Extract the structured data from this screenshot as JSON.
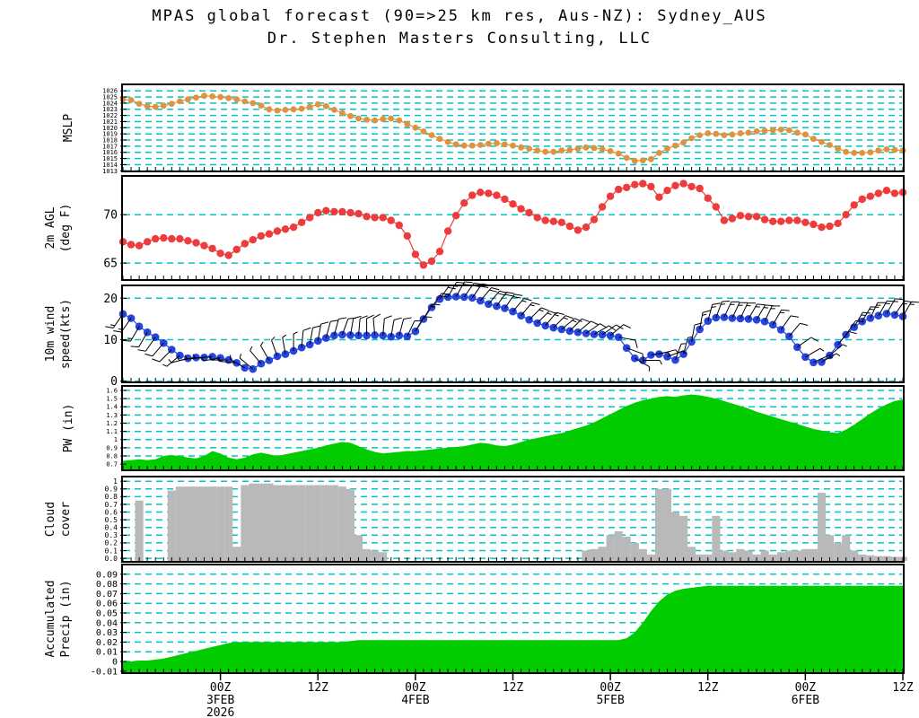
{
  "header": {
    "title": "MPAS global forecast (90=>25 km res, Aus-NZ): Sydney_AUS",
    "subtitle": "Dr. Stephen Masters Consulting, LLC"
  },
  "colors": {
    "background": "#ffffff",
    "grid": "#00c6c6",
    "border": "#000000",
    "mslp": "#e0933f",
    "temp": "#ee3b3b",
    "wind": "#2644de",
    "pw_fill": "#00cc00",
    "cloud_fill": "#b9b9b9",
    "precip_fill": "#00cc00",
    "barb": "#000000"
  },
  "x_axis": {
    "hours_span": 96,
    "major_ticks": [
      {
        "hour": 12,
        "lines": [
          "00Z",
          "3FEB",
          "2026"
        ]
      },
      {
        "hour": 24,
        "lines": [
          "12Z"
        ]
      },
      {
        "hour": 36,
        "lines": [
          "00Z",
          "4FEB"
        ]
      },
      {
        "hour": 48,
        "lines": [
          "12Z"
        ]
      },
      {
        "hour": 60,
        "lines": [
          "00Z",
          "5FEB"
        ]
      },
      {
        "hour": 72,
        "lines": [
          "12Z"
        ]
      },
      {
        "hour": 84,
        "lines": [
          "00Z",
          "6FEB"
        ]
      },
      {
        "hour": 96,
        "lines": [
          "12Z"
        ]
      }
    ]
  },
  "chart_data": [
    {
      "name": "mslp",
      "type": "line-dots",
      "title_lines": [
        "MSLP"
      ],
      "color": "#e0933f",
      "ylim": [
        1012.9,
        1027.05
      ],
      "yticks": [
        {
          "v": 1026,
          "label": "1026"
        },
        {
          "v": 1025,
          "label": "1025"
        },
        {
          "v": 1024,
          "label": "1024"
        },
        {
          "v": 1023,
          "label": "1023"
        },
        {
          "v": 1022,
          "label": "1022"
        },
        {
          "v": 1021,
          "label": "1021"
        },
        {
          "v": 1020,
          "label": "1020"
        },
        {
          "v": 1019,
          "label": "1019"
        },
        {
          "v": 1018,
          "label": "1018"
        },
        {
          "v": 1017,
          "label": "1017"
        },
        {
          "v": 1016,
          "label": "1016"
        },
        {
          "v": 1015,
          "label": "1015"
        },
        {
          "v": 1014,
          "label": "1014"
        },
        {
          "v": 1013,
          "label": "1013"
        }
      ],
      "values": [
        1024.6,
        1024.5,
        1023.9,
        1023.5,
        1023.4,
        1023.6,
        1023.9,
        1024.3,
        1024.6,
        1024.9,
        1025.2,
        1025.1,
        1025.0,
        1024.8,
        1024.6,
        1024.3,
        1024.0,
        1023.6,
        1023.0,
        1022.8,
        1022.9,
        1023.0,
        1023.1,
        1023.4,
        1023.8,
        1023.5,
        1022.9,
        1022.4,
        1021.9,
        1021.5,
        1021.3,
        1021.2,
        1021.4,
        1021.5,
        1021.2,
        1020.6,
        1020.0,
        1019.4,
        1018.8,
        1018.2,
        1017.7,
        1017.3,
        1017.1,
        1017.1,
        1017.2,
        1017.4,
        1017.5,
        1017.3,
        1017.1,
        1016.8,
        1016.6,
        1016.3,
        1016.1,
        1016.1,
        1016.3,
        1016.4,
        1016.6,
        1016.8,
        1016.7,
        1016.5,
        1016.2,
        1015.8,
        1015.1,
        1014.6,
        1014.7,
        1014.9,
        1015.9,
        1016.6,
        1017.1,
        1017.6,
        1018.3,
        1018.8,
        1019.1,
        1019.0,
        1018.8,
        1018.9,
        1019.1,
        1019.2,
        1019.4,
        1019.5,
        1019.6,
        1019.7,
        1019.6,
        1019.2,
        1018.9,
        1018.2,
        1017.7,
        1017.2,
        1016.6,
        1016.1,
        1015.9,
        1015.9,
        1016.0,
        1016.3,
        1016.5,
        1016.4,
        1016.3
      ]
    },
    {
      "name": "temp",
      "type": "line-dots",
      "title_lines": [
        "2m AGL",
        "(deg F)"
      ],
      "color": "#ee3b3b",
      "ylim": [
        63.25,
        74.0
      ],
      "yticks": [
        {
          "v": 70,
          "label": "70"
        },
        {
          "v": 65,
          "label": "65"
        }
      ],
      "values": [
        67.2,
        66.9,
        66.8,
        67.2,
        67.5,
        67.6,
        67.5,
        67.5,
        67.3,
        67.1,
        66.8,
        66.5,
        66.0,
        65.8,
        66.4,
        67.0,
        67.4,
        67.8,
        68.0,
        68.3,
        68.5,
        68.7,
        69.2,
        69.7,
        70.2,
        70.4,
        70.3,
        70.3,
        70.2,
        70.1,
        69.8,
        69.7,
        69.7,
        69.4,
        68.9,
        67.8,
        65.9,
        64.8,
        65.2,
        66.2,
        68.3,
        69.9,
        71.2,
        72.0,
        72.3,
        72.2,
        72.0,
        71.6,
        71.1,
        70.6,
        70.2,
        69.7,
        69.4,
        69.3,
        69.2,
        68.8,
        68.4,
        68.7,
        69.5,
        70.8,
        71.9,
        72.6,
        72.8,
        73.1,
        73.2,
        72.9,
        71.8,
        72.5,
        73.0,
        73.2,
        72.9,
        72.7,
        71.7,
        70.8,
        69.4,
        69.6,
        69.9,
        69.8,
        69.8,
        69.5,
        69.3,
        69.3,
        69.4,
        69.4,
        69.2,
        69.0,
        68.7,
        68.8,
        69.1,
        70.0,
        71.0,
        71.6,
        71.9,
        72.2,
        72.5,
        72.2,
        72.3
      ]
    },
    {
      "name": "wind",
      "type": "line-dots",
      "title_lines": [
        "10m wind",
        "speed(kts)"
      ],
      "color": "#2644de",
      "ylim": [
        -0.3,
        23.1
      ],
      "yticks": [
        {
          "v": 20,
          "label": "20"
        },
        {
          "v": 10,
          "label": "10"
        },
        {
          "v": 0,
          "label": "0"
        }
      ],
      "values": [
        16.2,
        15.2,
        13.2,
        11.8,
        10.6,
        9.2,
        7.6,
        6.2,
        5.5,
        5.7,
        5.7,
        5.9,
        5.6,
        5.1,
        4.4,
        3.2,
        2.9,
        4.2,
        5.0,
        6.0,
        6.5,
        7.3,
        8.1,
        8.8,
        9.7,
        10.4,
        11.0,
        11.2,
        11.1,
        11.0,
        11.0,
        11.1,
        11.0,
        10.7,
        11.0,
        10.8,
        12.0,
        15.0,
        17.8,
        19.8,
        20.3,
        20.4,
        20.3,
        20.1,
        19.4,
        18.6,
        18.1,
        17.6,
        16.8,
        15.8,
        14.8,
        14.0,
        13.4,
        12.9,
        12.5,
        12.1,
        11.8,
        11.5,
        11.3,
        11.2,
        11.0,
        10.6,
        8.0,
        5.5,
        5.0,
        6.3,
        6.5,
        5.9,
        5.1,
        6.5,
        9.5,
        12.5,
        14.5,
        15.3,
        15.4,
        15.2,
        15.1,
        15.0,
        14.8,
        14.4,
        13.6,
        12.4,
        10.8,
        8.2,
        5.8,
        4.5,
        4.6,
        6.2,
        8.8,
        11.2,
        13.0,
        14.4,
        15.2,
        15.8,
        16.3,
        16.0,
        15.6
      ],
      "barb_angles": [
        215,
        215,
        210,
        210,
        215,
        220,
        225,
        230,
        255,
        260,
        265,
        265,
        260,
        270,
        275,
        300,
        310,
        320,
        330,
        340,
        350,
        0,
        5,
        10,
        10,
        15,
        15,
        20,
        10,
        5,
        0,
        355,
        5,
        10,
        15,
        25,
        30,
        30,
        35,
        35,
        30,
        30,
        35,
        35,
        40,
        40,
        35,
        35,
        40,
        40,
        45,
        45,
        40,
        45,
        50,
        45,
        50,
        55,
        60,
        55,
        50,
        100,
        110,
        120,
        90,
        80,
        75,
        70,
        20,
        15,
        10,
        10,
        15,
        20,
        25,
        25,
        25,
        30,
        30,
        25,
        30,
        35,
        40,
        55,
        60,
        65,
        60,
        50,
        40,
        35,
        30,
        30,
        25,
        30,
        30,
        35,
        30
      ]
    },
    {
      "name": "pw",
      "type": "area",
      "title_lines": [
        "PW (in)"
      ],
      "color": "#00cc00",
      "ylim": [
        0.625,
        1.655
      ],
      "yticks": [
        {
          "v": 1.6,
          "label": "1.6"
        },
        {
          "v": 1.5,
          "label": "1.5"
        },
        {
          "v": 1.4,
          "label": "1.4"
        },
        {
          "v": 1.3,
          "label": "1.3"
        },
        {
          "v": 1.2,
          "label": "1.2"
        },
        {
          "v": 1.1,
          "label": "1.1"
        },
        {
          "v": 1.0,
          "label": "1"
        },
        {
          "v": 0.9,
          "label": "0.9"
        },
        {
          "v": 0.8,
          "label": "0.8"
        },
        {
          "v": 0.7,
          "label": "0.7"
        }
      ],
      "values": [
        0.74,
        0.75,
        0.76,
        0.75,
        0.76,
        0.8,
        0.81,
        0.8,
        0.78,
        0.77,
        0.8,
        0.86,
        0.83,
        0.78,
        0.76,
        0.78,
        0.82,
        0.84,
        0.82,
        0.8,
        0.82,
        0.84,
        0.86,
        0.88,
        0.9,
        0.93,
        0.95,
        0.97,
        0.96,
        0.92,
        0.88,
        0.85,
        0.83,
        0.84,
        0.85,
        0.86,
        0.86,
        0.87,
        0.88,
        0.89,
        0.9,
        0.91,
        0.92,
        0.94,
        0.96,
        0.95,
        0.93,
        0.92,
        0.94,
        0.97,
        1.0,
        1.02,
        1.04,
        1.06,
        1.08,
        1.11,
        1.14,
        1.17,
        1.21,
        1.26,
        1.31,
        1.36,
        1.41,
        1.45,
        1.48,
        1.5,
        1.52,
        1.53,
        1.52,
        1.54,
        1.55,
        1.54,
        1.52,
        1.5,
        1.47,
        1.44,
        1.41,
        1.38,
        1.34,
        1.31,
        1.28,
        1.25,
        1.22,
        1.19,
        1.16,
        1.13,
        1.11,
        1.09,
        1.08,
        1.12,
        1.18,
        1.25,
        1.32,
        1.38,
        1.43,
        1.47,
        1.49
      ]
    },
    {
      "name": "cloud",
      "type": "bars",
      "title_lines": [
        "Cloud",
        "cover"
      ],
      "color": "#b9b9b9",
      "ylim": [
        -0.045,
        1.06
      ],
      "yticks": [
        {
          "v": 1.0,
          "label": "1"
        },
        {
          "v": 0.9,
          "label": "0.9"
        },
        {
          "v": 0.8,
          "label": "0.8"
        },
        {
          "v": 0.7,
          "label": "0.7"
        },
        {
          "v": 0.6,
          "label": "0.6"
        },
        {
          "v": 0.5,
          "label": "0.5"
        },
        {
          "v": 0.4,
          "label": "0.4"
        },
        {
          "v": 0.3,
          "label": "0.3"
        },
        {
          "v": 0.2,
          "label": "0.2"
        },
        {
          "v": 0.1,
          "label": "0.1"
        },
        {
          "v": 0.0,
          "label": "0.0"
        }
      ],
      "values": [
        0,
        0,
        0.75,
        0,
        0,
        0,
        0.88,
        0.93,
        0.93,
        0.93,
        0.93,
        0.93,
        0.93,
        0.93,
        0.15,
        0.95,
        0.97,
        0.97,
        0.97,
        0.95,
        0.95,
        0.95,
        0.95,
        0.95,
        0.95,
        0.95,
        0.95,
        0.93,
        0.9,
        0.3,
        0.12,
        0.1,
        0.08,
        0,
        0,
        0,
        0,
        0,
        0,
        0,
        0,
        0,
        0,
        0,
        0,
        0,
        0,
        0,
        0,
        0,
        0,
        0,
        0,
        0,
        0,
        0,
        0,
        0.1,
        0.12,
        0.15,
        0.3,
        0.35,
        0.28,
        0.2,
        0.12,
        0.05,
        0.9,
        0.9,
        0.6,
        0.55,
        0.15,
        0.05,
        0.05,
        0.55,
        0.1,
        0.08,
        0.12,
        0.1,
        0.05,
        0.1,
        0.05,
        0.08,
        0.1,
        0.1,
        0.12,
        0.12,
        0.85,
        0.3,
        0.2,
        0.3,
        0.1,
        0.05,
        0.04,
        0.03,
        0.03,
        0.02,
        0.02
      ]
    },
    {
      "name": "precip",
      "type": "area",
      "title_lines": [
        "Accumulated",
        "Precip (in)"
      ],
      "color": "#00cc00",
      "ylim": [
        -0.012,
        0.1
      ],
      "yticks": [
        {
          "v": 0.09,
          "label": "0.09"
        },
        {
          "v": 0.08,
          "label": "0.08"
        },
        {
          "v": 0.07,
          "label": "0.07"
        },
        {
          "v": 0.06,
          "label": "0.06"
        },
        {
          "v": 0.05,
          "label": "0.05"
        },
        {
          "v": 0.04,
          "label": "0.04"
        },
        {
          "v": 0.03,
          "label": "0.03"
        },
        {
          "v": 0.02,
          "label": "0.02"
        },
        {
          "v": 0.01,
          "label": "0.01"
        },
        {
          "v": 0.0,
          "label": "0"
        },
        {
          "v": -0.01,
          "label": "-0.01"
        }
      ],
      "values": [
        0.0,
        0.0,
        0.001,
        0.001,
        0.002,
        0.003,
        0.005,
        0.007,
        0.009,
        0.011,
        0.013,
        0.015,
        0.017,
        0.019,
        0.02,
        0.02,
        0.02,
        0.02,
        0.02,
        0.02,
        0.02,
        0.02,
        0.02,
        0.02,
        0.02,
        0.02,
        0.02,
        0.02,
        0.021,
        0.022,
        0.022,
        0.022,
        0.022,
        0.022,
        0.022,
        0.022,
        0.022,
        0.022,
        0.022,
        0.022,
        0.022,
        0.022,
        0.022,
        0.022,
        0.022,
        0.022,
        0.022,
        0.022,
        0.022,
        0.022,
        0.022,
        0.022,
        0.022,
        0.022,
        0.022,
        0.022,
        0.022,
        0.022,
        0.022,
        0.022,
        0.022,
        0.022,
        0.024,
        0.03,
        0.04,
        0.052,
        0.062,
        0.069,
        0.073,
        0.075,
        0.076,
        0.077,
        0.078,
        0.078,
        0.078,
        0.078,
        0.078,
        0.078,
        0.078,
        0.078,
        0.078,
        0.078,
        0.078,
        0.078,
        0.078,
        0.078,
        0.078,
        0.078,
        0.078,
        0.078,
        0.078,
        0.078,
        0.078,
        0.078,
        0.078,
        0.078,
        0.078
      ]
    }
  ]
}
